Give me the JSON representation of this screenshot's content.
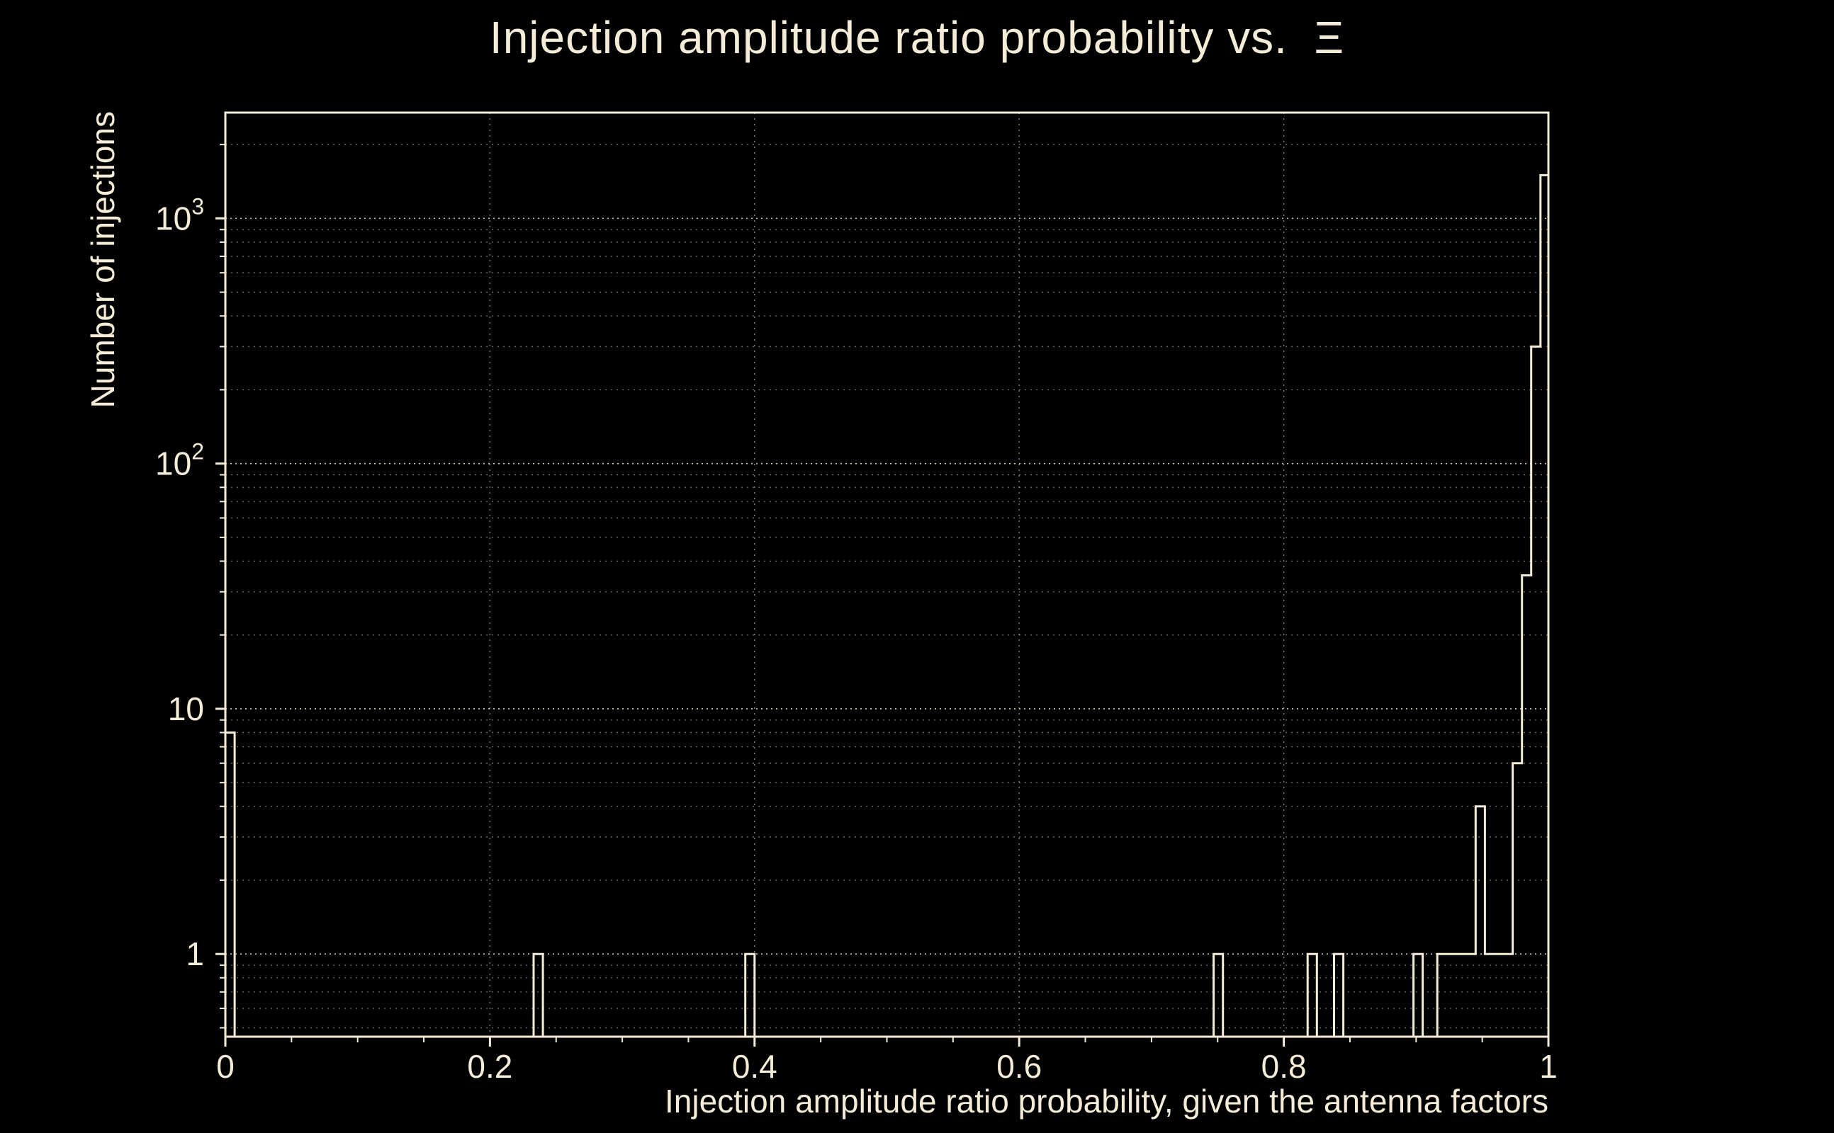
{
  "title": "Injection amplitude ratio probability vs.  Ξ",
  "chart_data": {
    "type": "histogram",
    "title": "Injection amplitude ratio probability vs.  Ξ",
    "xlabel": "Injection amplitude ratio probability, given the antenna factors",
    "ylabel": "Number of injections",
    "xlim": [
      0,
      1
    ],
    "ylim": [
      0.46,
      2700
    ],
    "y_scale": "log",
    "grid": true,
    "legend": "none",
    "x_major_ticks": [
      0,
      0.2,
      0.4,
      0.6,
      0.8,
      1
    ],
    "x_tick_labels": [
      "0",
      "0.2",
      "0.4",
      "0.6",
      "0.8",
      "1"
    ],
    "x_minor_step": 0.05,
    "y_major_ticks": [
      1,
      10,
      100,
      1000
    ],
    "y_tick_labels": [
      {
        "value": 1,
        "base": "1",
        "exp": ""
      },
      {
        "value": 10,
        "base": "10",
        "exp": ""
      },
      {
        "value": 100,
        "base": "10",
        "exp": "2"
      },
      {
        "value": 1000,
        "base": "10",
        "exp": "3"
      }
    ],
    "bins": [
      {
        "x0": 0.0,
        "x1": 0.007,
        "count": 8
      },
      {
        "x0": 0.233,
        "x1": 0.24,
        "count": 1
      },
      {
        "x0": 0.393,
        "x1": 0.4,
        "count": 1
      },
      {
        "x0": 0.747,
        "x1": 0.754,
        "count": 1
      },
      {
        "x0": 0.818,
        "x1": 0.825,
        "count": 1
      },
      {
        "x0": 0.838,
        "x1": 0.845,
        "count": 1
      },
      {
        "x0": 0.898,
        "x1": 0.905,
        "count": 1
      },
      {
        "x0": 0.916,
        "x1": 0.945,
        "count": 1
      },
      {
        "x0": 0.945,
        "x1": 0.952,
        "count": 4
      },
      {
        "x0": 0.952,
        "x1": 0.973,
        "count": 1
      },
      {
        "x0": 0.973,
        "x1": 0.98,
        "count": 6
      },
      {
        "x0": 0.98,
        "x1": 0.987,
        "count": 35
      },
      {
        "x0": 0.987,
        "x1": 0.994,
        "count": 300
      },
      {
        "x0": 0.994,
        "x1": 1.0,
        "count": 1500
      }
    ],
    "colors": {
      "background": "#000000",
      "foreground": "#f5ecd7"
    }
  }
}
